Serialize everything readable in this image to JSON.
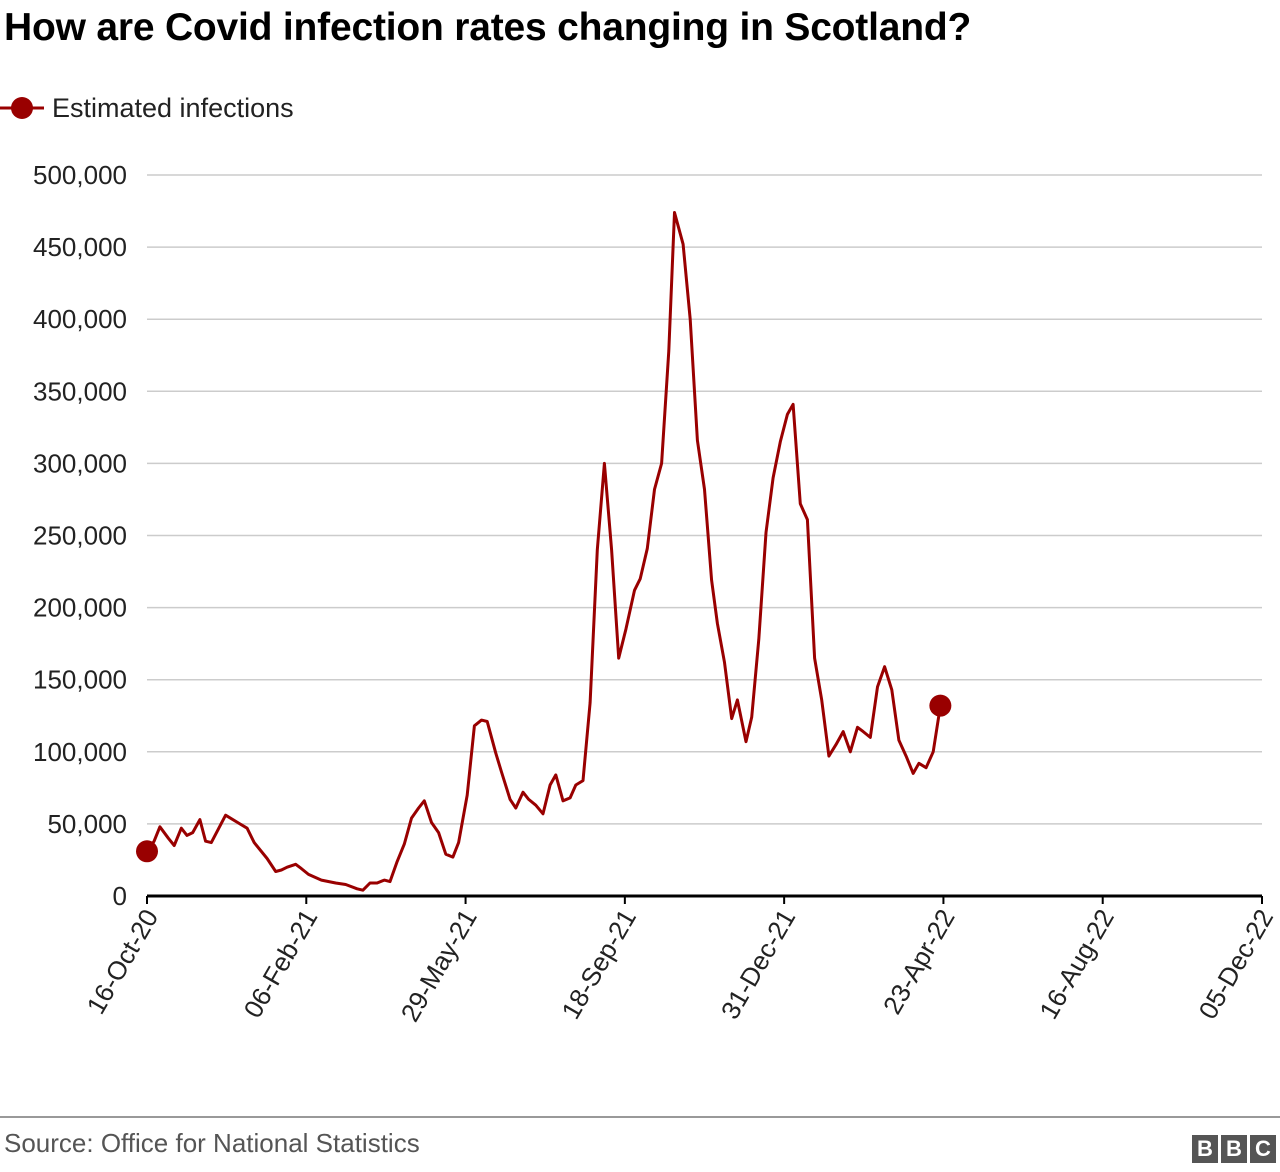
{
  "title": "How are Covid infection rates changing in Scotland?",
  "legend": {
    "label": "Estimated infections",
    "color": "#990000",
    "marker": "line-with-dot-icon"
  },
  "source": "Source: Office for National Statistics",
  "logo": "BBC",
  "chart_data": {
    "type": "line",
    "title": "How are Covid infection rates changing in Scotland?",
    "xlabel": "",
    "ylabel": "",
    "ylim": [
      0,
      500000
    ],
    "yticks": [
      0,
      50000,
      100000,
      150000,
      200000,
      250000,
      300000,
      350000,
      400000,
      450000,
      500000
    ],
    "ytick_labels": [
      "0",
      "50,000",
      "100,000",
      "150,000",
      "200,000",
      "250,000",
      "300,000",
      "350,000",
      "400,000",
      "450,000",
      "500,000"
    ],
    "xlim": [
      "2020-10-16",
      "2022-12-05"
    ],
    "xtick_labels": [
      "16-Oct-20",
      "06-Feb-21",
      "29-May-21",
      "18-Sep-21",
      "31-Dec-21",
      "23-Apr-22",
      "16-Aug-22",
      "05-Dec-22"
    ],
    "grid": true,
    "legend_position": "top-left",
    "series": [
      {
        "name": "Estimated infections",
        "color": "#990000",
        "marker_endpoints": true,
        "points": [
          [
            "2020-10-16",
            31000
          ],
          [
            "2020-10-21",
            38000
          ],
          [
            "2020-10-25",
            48000
          ],
          [
            "2020-10-31",
            40000
          ],
          [
            "2020-11-04",
            35000
          ],
          [
            "2020-11-09",
            47000
          ],
          [
            "2020-11-13",
            42000
          ],
          [
            "2020-11-17",
            44000
          ],
          [
            "2020-11-22",
            53000
          ],
          [
            "2020-11-26",
            38000
          ],
          [
            "2020-11-30",
            37000
          ],
          [
            "2020-12-10",
            56000
          ],
          [
            "2020-12-20",
            50000
          ],
          [
            "2020-12-25",
            47000
          ],
          [
            "2020-12-30",
            37000
          ],
          [
            "2021-01-08",
            26000
          ],
          [
            "2021-01-14",
            17000
          ],
          [
            "2021-01-18",
            18000
          ],
          [
            "2021-01-22",
            20000
          ],
          [
            "2021-01-28",
            22000
          ],
          [
            "2021-02-01",
            19000
          ],
          [
            "2021-02-06",
            15000
          ],
          [
            "2021-02-15",
            11000
          ],
          [
            "2021-02-25",
            9000
          ],
          [
            "2021-03-04",
            8000
          ],
          [
            "2021-03-12",
            5000
          ],
          [
            "2021-03-16",
            4000
          ],
          [
            "2021-03-21",
            9000
          ],
          [
            "2021-03-26",
            9000
          ],
          [
            "2021-03-31",
            11000
          ],
          [
            "2021-04-04",
            10000
          ],
          [
            "2021-04-09",
            24000
          ],
          [
            "2021-04-14",
            36000
          ],
          [
            "2021-04-19",
            54000
          ],
          [
            "2021-04-24",
            61000
          ],
          [
            "2021-04-28",
            66000
          ],
          [
            "2021-05-03",
            51000
          ],
          [
            "2021-05-08",
            44000
          ],
          [
            "2021-05-13",
            29000
          ],
          [
            "2021-05-18",
            27000
          ],
          [
            "2021-05-22",
            37000
          ],
          [
            "2021-05-28",
            70000
          ],
          [
            "2021-06-02",
            118000
          ],
          [
            "2021-06-07",
            122000
          ],
          [
            "2021-06-11",
            121000
          ],
          [
            "2021-06-17",
            99000
          ],
          [
            "2021-06-21",
            86000
          ],
          [
            "2021-06-27",
            67000
          ],
          [
            "2021-07-01",
            61000
          ],
          [
            "2021-07-06",
            72000
          ],
          [
            "2021-07-10",
            67000
          ],
          [
            "2021-07-15",
            63000
          ],
          [
            "2021-07-20",
            57000
          ],
          [
            "2021-07-25",
            77000
          ],
          [
            "2021-07-29",
            84000
          ],
          [
            "2021-08-03",
            66000
          ],
          [
            "2021-08-08",
            68000
          ],
          [
            "2021-08-12",
            77000
          ],
          [
            "2021-08-17",
            80000
          ],
          [
            "2021-08-22",
            134000
          ],
          [
            "2021-08-27",
            240000
          ],
          [
            "2021-09-01",
            300000
          ],
          [
            "2021-09-06",
            240000
          ],
          [
            "2021-09-11",
            165000
          ],
          [
            "2021-09-16",
            185000
          ],
          [
            "2021-09-22",
            212000
          ],
          [
            "2021-09-26",
            220000
          ],
          [
            "2021-10-01",
            241000
          ],
          [
            "2021-10-06",
            282000
          ],
          [
            "2021-10-11",
            300000
          ],
          [
            "2021-10-16",
            378000
          ],
          [
            "2021-10-20",
            474000
          ],
          [
            "2021-10-26",
            452000
          ],
          [
            "2021-10-31",
            400000
          ],
          [
            "2021-11-05",
            316000
          ],
          [
            "2021-11-10",
            282000
          ],
          [
            "2021-11-15",
            219000
          ],
          [
            "2021-11-19",
            189000
          ],
          [
            "2021-11-24",
            162000
          ],
          [
            "2021-11-29",
            123000
          ],
          [
            "2021-12-03",
            136000
          ],
          [
            "2021-12-09",
            107000
          ],
          [
            "2021-12-13",
            124000
          ],
          [
            "2021-12-18",
            178000
          ],
          [
            "2021-12-23",
            252000
          ],
          [
            "2021-12-28",
            290000
          ],
          [
            "2022-01-02",
            315000
          ],
          [
            "2022-01-07",
            334000
          ],
          [
            "2022-01-11",
            341000
          ],
          [
            "2022-01-16",
            272000
          ],
          [
            "2022-01-21",
            261000
          ],
          [
            "2022-01-26",
            165000
          ],
          [
            "2022-01-31",
            136000
          ],
          [
            "2022-02-05",
            97000
          ],
          [
            "2022-02-10",
            105000
          ],
          [
            "2022-02-15",
            114000
          ],
          [
            "2022-02-20",
            100000
          ],
          [
            "2022-02-25",
            117000
          ],
          [
            "2022-03-01",
            114000
          ],
          [
            "2022-03-06",
            110000
          ],
          [
            "2022-03-11",
            145000
          ],
          [
            "2022-03-16",
            159000
          ],
          [
            "2022-03-21",
            143000
          ],
          [
            "2022-03-26",
            108000
          ],
          [
            "2022-03-31",
            97000
          ],
          [
            "2022-04-05",
            85000
          ],
          [
            "2022-04-09",
            92000
          ],
          [
            "2022-04-14",
            89000
          ],
          [
            "2022-04-19",
            100000
          ],
          [
            "2022-04-24",
            132000
          ]
        ]
      }
    ]
  }
}
